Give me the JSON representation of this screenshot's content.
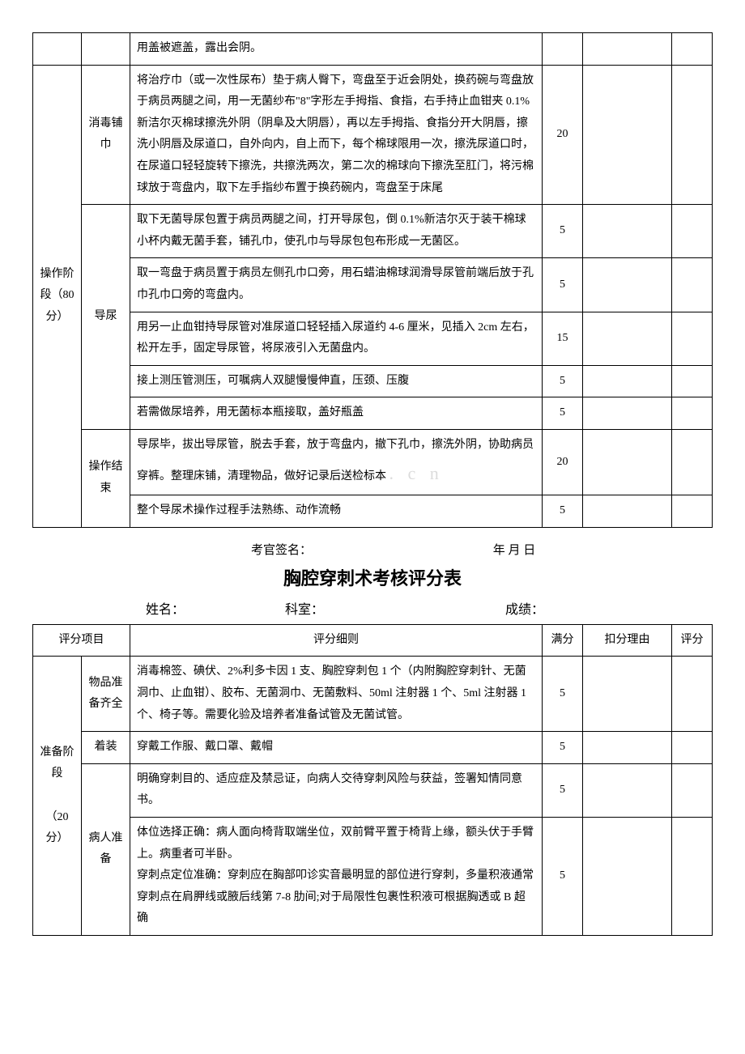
{
  "table1": {
    "r0": {
      "detail": "用盖被遮盖，露出会阴。"
    },
    "phase": "操作阶段（80 分）",
    "sub_sterile": "消毒铺巾",
    "r1": {
      "detail": "将治疗巾（或一次性尿布）垫于病人臀下，弯盘至于近会阴处，换药碗与弯盘放于病员两腿之间，用一无菌纱布\"8\"字形左手拇指、食指，右手持止血钳夹 0.1%新洁尔灭棉球擦洗外阴（阴阜及大阴唇），再以左手拇指、食指分开大阴唇，擦洗小阴唇及尿道口，自外向内，自上而下，每个棉球限用一次，擦洗尿道口时，在尿道口轻轻旋转下擦洗，共擦洗两次，第二次的棉球向下擦洗至肛门，将污棉球放于弯盘内，取下左手指纱布置于换药碗内，弯盘至于床尾",
      "score": "20"
    },
    "sub_cath": "导尿",
    "r2": {
      "detail": "取下无菌导尿包置于病员两腿之间，打开导尿包，倒 0.1%新洁尔灭于装干棉球小杯内戴无菌手套，铺孔巾，使孔巾与导尿包包布形成一无菌区。",
      "score": "5"
    },
    "r3": {
      "detail": "取一弯盘于病员置于病员左侧孔巾口旁，用石蜡油棉球润滑导尿管前端后放于孔巾孔巾口旁的弯盘内。",
      "score": "5"
    },
    "r4": {
      "detail": "用另一止血钳持导尿管对准尿道口轻轻插入尿道约 4-6 厘米，见插入 2cm 左右，松开左手，固定导尿管，将尿液引入无菌盘内。",
      "score": "15"
    },
    "r5": {
      "detail": "接上测压管测压，可嘱病人双腿慢慢伸直，压颈、压腹",
      "score": "5"
    },
    "r6": {
      "detail": "若需做尿培养，用无菌标本瓶接取，盖好瓶盖",
      "score": "5"
    },
    "sub_end": "操作结束",
    "r7": {
      "detail": "导尿毕，拔出导尿管，脱去手套，放于弯盘内，撤下孔巾，擦洗外阴，协助病员穿裤。整理床铺，清理物品，做好记录后送检标本",
      "score": "20"
    },
    "r8": {
      "detail": "整个导尿术操作过程手法熟练、动作流畅",
      "score": "5"
    }
  },
  "signline": {
    "examiner": "考官签名：",
    "date": "年  月  日"
  },
  "title2": "胸腔穿刺术考核评分表",
  "info": {
    "name_lbl": "姓名：",
    "dept_lbl": "科室：",
    "score_lbl": "成绩："
  },
  "table2": {
    "hdr": {
      "item": "评分项目",
      "detail": "评分细则",
      "full": "满分",
      "reason": "扣分理由",
      "grade": "评分"
    },
    "phase": "准备阶段\n\n（20分）",
    "sub_item": "物品准备齐全",
    "r1": {
      "detail": "消毒棉签、碘伏、2%利多卡因 1 支、胸腔穿刺包 1 个（内附胸腔穿刺针、无菌洞巾、止血钳）、胶布、无菌洞巾、无菌敷料、50ml 注射器 1 个、5ml 注射器 1 个、椅子等。需要化验及培养者准备试管及无菌试管。",
      "score": "5"
    },
    "sub_dress": "着装",
    "r2": {
      "detail": "穿戴工作服、戴口罩、戴帽",
      "score": "5"
    },
    "sub_patient": "病人准备",
    "r3": {
      "detail": "明确穿刺目的、适应症及禁忌证，向病人交待穿刺风险与获益，签署知情同意书。",
      "score": "5"
    },
    "r4": {
      "detail": "体位选择正确：病人面向椅背取端坐位，双前臂平置于椅背上缘，额头伏于手臂上。病重者可半卧。\n穿刺点定位准确：穿刺应在胸部叩诊实音最明显的部位进行穿刺，多量积液通常穿刺点在肩胛线或腋后线第 7-8 肋间;对于局限性包裹性积液可根据胸透或 B 超确",
      "score": "5"
    }
  },
  "watermark": ". c n"
}
